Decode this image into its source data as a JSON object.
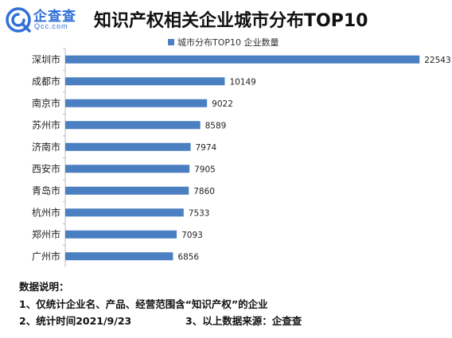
{
  "header": {
    "logo_text": "企查查",
    "logo_sub": "Qcc.com",
    "title": "知识产权相关企业城市分布TOP10"
  },
  "chart_data": {
    "type": "bar",
    "orientation": "horizontal",
    "categories": [
      "深圳市",
      "成都市",
      "南京市",
      "苏州市",
      "济南市",
      "西安市",
      "青岛市",
      "杭州市",
      "郑州市",
      "广州市"
    ],
    "series": [
      {
        "name": "城市分布TOP10 企业数量",
        "values": [
          22543,
          10149,
          9022,
          8589,
          7974,
          7905,
          7860,
          7533,
          7093,
          6856
        ]
      }
    ],
    "legend_position": "top",
    "grid": false,
    "bar_color": "#4a7fc1",
    "xlim": [
      0,
      24000
    ]
  },
  "notes": {
    "heading": "数据说明：",
    "line1": "1、仅统计企业名、产品、经营范围含“知识产权”的企业",
    "line2": "2、统计时间2021/9/23",
    "line3": "3、以上数据来源：企查查"
  }
}
